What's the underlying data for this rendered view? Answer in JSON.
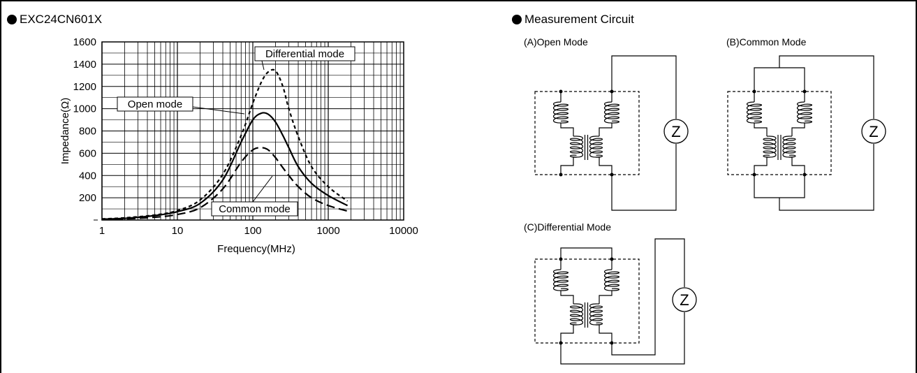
{
  "left_header": "EXC24CN601X",
  "right_header": "Measurement Circuit",
  "circuits": {
    "a_label": "(A)Open Mode",
    "b_label": "(B)Common Mode",
    "c_label": "(C)Differential Mode",
    "z_symbol": "Z"
  },
  "chart_data": {
    "type": "line",
    "xlabel": "Frequency(MHz)",
    "ylabel": "Impedance(Ω)",
    "xscale": "log",
    "xlim": [
      1,
      10000
    ],
    "ylim": [
      0,
      1600
    ],
    "xticks": [
      "1",
      "10",
      "100",
      "1000",
      "10000"
    ],
    "yticks": [
      "200",
      "400",
      "600",
      "800",
      "1000",
      "1200",
      "1400",
      "1600"
    ],
    "grid": true,
    "series": [
      {
        "name": "Differential mode",
        "style": "dashed",
        "x": [
          1,
          2,
          5,
          10,
          20,
          40,
          70,
          100,
          130,
          160,
          200,
          250,
          300,
          400,
          600,
          1000,
          1800
        ],
        "y": [
          10,
          20,
          45,
          85,
          180,
          410,
          760,
          1050,
          1240,
          1330,
          1340,
          1200,
          1000,
          750,
          480,
          300,
          170
        ]
      },
      {
        "name": "Open mode",
        "style": "solid",
        "x": [
          1,
          2,
          5,
          10,
          20,
          40,
          70,
          100,
          130,
          160,
          200,
          250,
          300,
          400,
          600,
          1000,
          1800
        ],
        "y": [
          8,
          15,
          40,
          75,
          150,
          360,
          700,
          900,
          960,
          950,
          880,
          760,
          650,
          480,
          330,
          220,
          130
        ]
      },
      {
        "name": "Common mode",
        "style": "long-dash",
        "x": [
          1,
          2,
          5,
          10,
          20,
          40,
          70,
          100,
          130,
          160,
          200,
          250,
          300,
          400,
          600,
          1000,
          1800
        ],
        "y": [
          5,
          10,
          25,
          50,
          110,
          280,
          520,
          630,
          650,
          630,
          560,
          470,
          400,
          300,
          200,
          130,
          80
        ]
      }
    ]
  }
}
